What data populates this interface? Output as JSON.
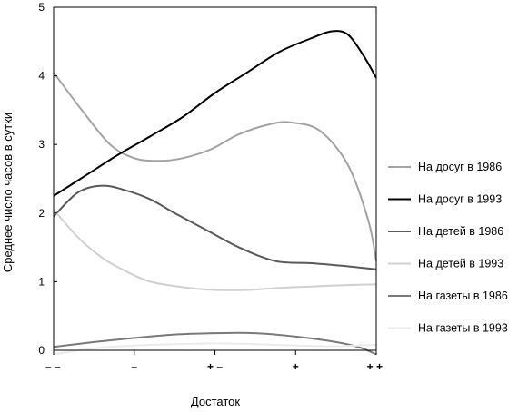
{
  "chart_data": {
    "type": "line",
    "title": "",
    "xlabel": "Достаток",
    "ylabel": "Среднее число часов в сутки",
    "ylim": [
      0,
      5
    ],
    "yticks": [
      "0",
      "1",
      "2",
      "3",
      "4",
      "5"
    ],
    "xlim": [
      0,
      4
    ],
    "xticks": [
      {
        "x": 0,
        "label": "– –"
      },
      {
        "x": 1,
        "label": "–"
      },
      {
        "x": 2,
        "label": "+ –"
      },
      {
        "x": 3,
        "label": "+"
      },
      {
        "x": 4,
        "label": "+ +"
      }
    ],
    "grid": false,
    "legend_position": "right",
    "series": [
      {
        "name": "На досуг в 1986",
        "color": "#a3a3a3",
        "width": 2,
        "points": [
          [
            0,
            4.05
          ],
          [
            0.35,
            3.5
          ],
          [
            0.7,
            3.0
          ],
          [
            1.0,
            2.8
          ],
          [
            1.3,
            2.76
          ],
          [
            1.6,
            2.8
          ],
          [
            1.95,
            2.93
          ],
          [
            2.3,
            3.15
          ],
          [
            2.7,
            3.3
          ],
          [
            2.95,
            3.32
          ],
          [
            3.3,
            3.2
          ],
          [
            3.65,
            2.7
          ],
          [
            3.9,
            1.9
          ],
          [
            4.0,
            1.3
          ]
        ]
      },
      {
        "name": "На досуг в 1993",
        "color": "#000000",
        "width": 2,
        "points": [
          [
            0,
            2.25
          ],
          [
            0.4,
            2.55
          ],
          [
            0.8,
            2.85
          ],
          [
            1.2,
            3.12
          ],
          [
            1.6,
            3.4
          ],
          [
            2.0,
            3.75
          ],
          [
            2.4,
            4.05
          ],
          [
            2.8,
            4.35
          ],
          [
            3.2,
            4.55
          ],
          [
            3.45,
            4.65
          ],
          [
            3.65,
            4.6
          ],
          [
            3.85,
            4.28
          ],
          [
            4.0,
            3.97
          ]
        ]
      },
      {
        "name": "На детей в 1986",
        "color": "#595959",
        "width": 2,
        "points": [
          [
            0,
            1.95
          ],
          [
            0.3,
            2.3
          ],
          [
            0.6,
            2.4
          ],
          [
            0.9,
            2.33
          ],
          [
            1.2,
            2.2
          ],
          [
            1.5,
            2.0
          ],
          [
            1.9,
            1.75
          ],
          [
            2.3,
            1.5
          ],
          [
            2.75,
            1.3
          ],
          [
            3.2,
            1.27
          ],
          [
            3.6,
            1.23
          ],
          [
            4.0,
            1.18
          ]
        ]
      },
      {
        "name": "На детей в 1993",
        "color": "#d0d0d0",
        "width": 2,
        "points": [
          [
            0,
            2.05
          ],
          [
            0.3,
            1.65
          ],
          [
            0.6,
            1.35
          ],
          [
            0.9,
            1.15
          ],
          [
            1.2,
            1.0
          ],
          [
            1.6,
            0.92
          ],
          [
            2.0,
            0.88
          ],
          [
            2.4,
            0.88
          ],
          [
            2.8,
            0.91
          ],
          [
            3.2,
            0.93
          ],
          [
            3.6,
            0.95
          ],
          [
            4.0,
            0.96
          ]
        ]
      },
      {
        "name": "На газеты в 1986",
        "color": "#7a7a7a",
        "width": 2,
        "points": [
          [
            0,
            0.05
          ],
          [
            0.5,
            0.12
          ],
          [
            1.0,
            0.18
          ],
          [
            1.5,
            0.23
          ],
          [
            2.0,
            0.25
          ],
          [
            2.5,
            0.25
          ],
          [
            3.0,
            0.2
          ],
          [
            3.5,
            0.12
          ],
          [
            3.8,
            0.04
          ],
          [
            4.0,
            -0.06
          ]
        ]
      },
      {
        "name": "На газеты в 1993",
        "color": "#ebebeb",
        "width": 2,
        "points": [
          [
            0,
            -0.06
          ],
          [
            0.5,
            0.03
          ],
          [
            1.0,
            0.07
          ],
          [
            1.5,
            0.09
          ],
          [
            2.0,
            0.1
          ],
          [
            2.5,
            0.09
          ],
          [
            3.0,
            0.07
          ],
          [
            3.5,
            0.06
          ],
          [
            4.0,
            0.08
          ]
        ]
      }
    ]
  }
}
